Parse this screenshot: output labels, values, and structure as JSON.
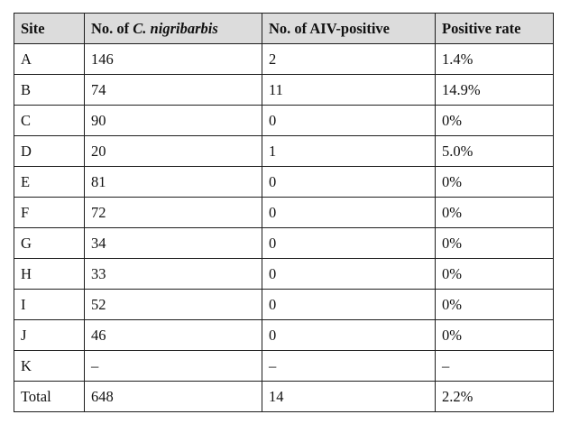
{
  "table": {
    "headers": {
      "site": "Site",
      "count_prefix": "No. of ",
      "count_species": "C. nigribarbis",
      "positive": "No. of AIV-positive",
      "rate": "Positive rate"
    },
    "rows": [
      {
        "site": "A",
        "count": "146",
        "positive": "2",
        "rate": "1.4%"
      },
      {
        "site": "B",
        "count": "74",
        "positive": "11",
        "rate": "14.9%"
      },
      {
        "site": "C",
        "count": "90",
        "positive": "0",
        "rate": "0%"
      },
      {
        "site": "D",
        "count": "20",
        "positive": "1",
        "rate": "5.0%"
      },
      {
        "site": "E",
        "count": "81",
        "positive": "0",
        "rate": "0%"
      },
      {
        "site": "F",
        "count": "72",
        "positive": "0",
        "rate": "0%"
      },
      {
        "site": "G",
        "count": "34",
        "positive": "0",
        "rate": "0%"
      },
      {
        "site": "H",
        "count": "33",
        "positive": "0",
        "rate": "0%"
      },
      {
        "site": "I",
        "count": "52",
        "positive": "0",
        "rate": "0%"
      },
      {
        "site": "J",
        "count": "46",
        "positive": "0",
        "rate": "0%"
      },
      {
        "site": "K",
        "count": "–",
        "positive": "–",
        "rate": "–"
      }
    ],
    "total": {
      "site": "Total",
      "count": "648",
      "positive": "14",
      "rate": "2.2%"
    }
  }
}
